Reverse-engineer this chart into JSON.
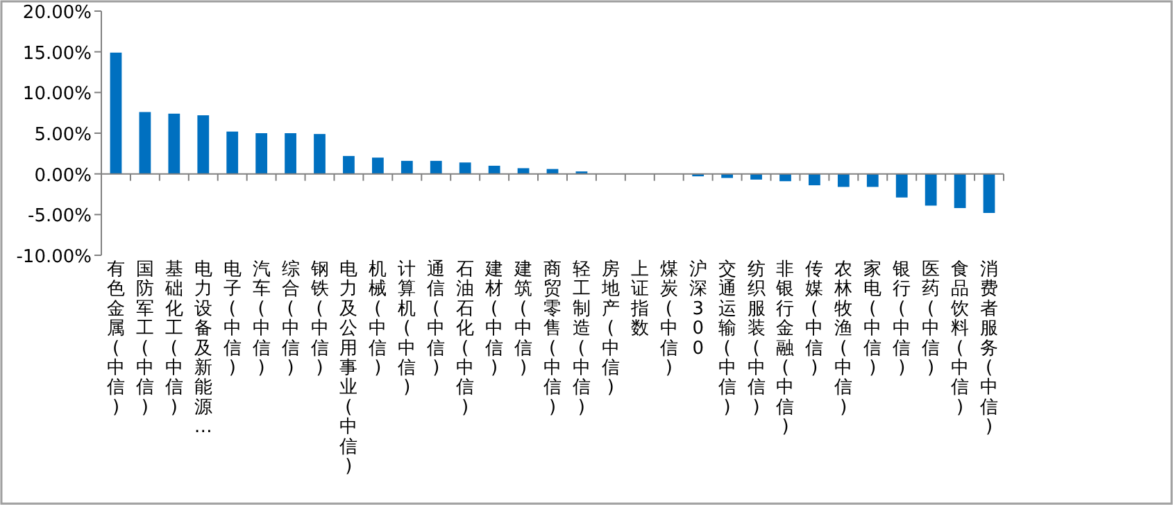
{
  "chart_data": {
    "type": "bar",
    "categories": [
      "有色金属(中信)",
      "国防军工(中信)",
      "基础化工(中信)",
      "电力设备及新能源…",
      "电子(中信)",
      "汽车(中信)",
      "综合(中信)",
      "钢铁(中信)",
      "电力及公用事业(中信)",
      "机械(中信)",
      "计算机(中信)",
      "通信(中信)",
      "石油石化(中信)",
      "建材(中信)",
      "建筑(中信)",
      "商贸零售(中信)",
      "轻工制造(中信)",
      "房地产(中信)",
      "上证指数",
      "煤炭(中信)",
      "沪深300",
      "交通运输(中信)",
      "纺织服装(中信)",
      "非银行金融(中信)",
      "传媒(中信)",
      "农林牧渔(中信)",
      "家电(中信)",
      "银行(中信)",
      "医药(中信)",
      "食品饮料(中信)",
      "消费者服务(中信)"
    ],
    "values": [
      14.9,
      7.6,
      7.4,
      7.2,
      5.2,
      5.0,
      5.0,
      4.9,
      2.2,
      2.0,
      1.6,
      1.6,
      1.4,
      1.0,
      0.7,
      0.6,
      0.3,
      0,
      0,
      0,
      -0.3,
      -0.5,
      -0.7,
      -0.9,
      -1.4,
      -1.6,
      -1.6,
      -2.9,
      -3.9,
      -4.2,
      -4.8
    ],
    "color": "#0070c0",
    "ylim": [
      -10,
      20
    ],
    "yticks": [
      {
        "value": -10,
        "label": "-10.00%"
      },
      {
        "value": -5,
        "label": "-5.00%"
      },
      {
        "value": 0,
        "label": "0.00%"
      },
      {
        "value": 5,
        "label": "5.00%"
      },
      {
        "value": 10,
        "label": "10.00%"
      },
      {
        "value": 15,
        "label": "15.00%"
      },
      {
        "value": 20,
        "label": "20.00%"
      }
    ]
  }
}
